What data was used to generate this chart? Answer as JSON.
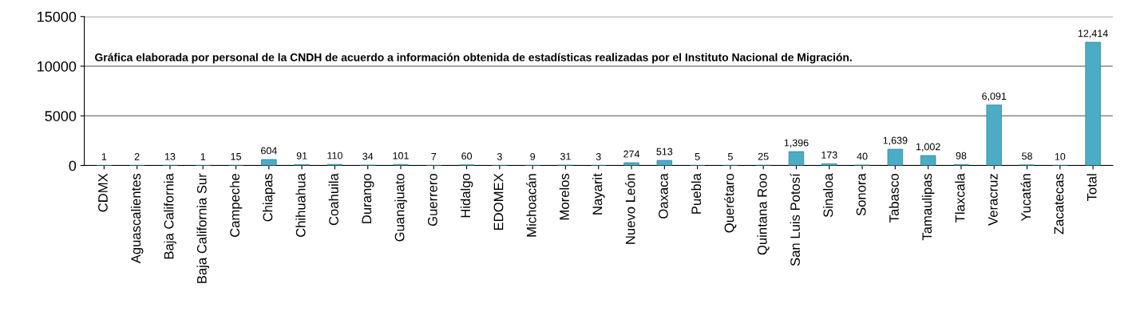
{
  "chart_data": {
    "type": "bar",
    "categories": [
      "CDMX",
      "Aguascalientes",
      "Baja California",
      "Baja California Sur",
      "Campeche",
      "Chiapas",
      "Chihuahua",
      "Coahuila",
      "Durango",
      "Guanajuato",
      "Guerrero",
      "Hidalgo",
      "EDOMEX",
      "Michoacán",
      "Morelos",
      "Nayarit",
      "Nuevo León",
      "Oaxaca",
      "Puebla",
      "Querétaro",
      "Quintana Roo",
      "San Luis Potosí",
      "Sinaloa",
      "Sonora",
      "Tabasco",
      "Tamaulipas",
      "Tlaxcala",
      "Veracruz",
      "Yucatán",
      "Zacatecas",
      "Total"
    ],
    "values": [
      1,
      2,
      13,
      1,
      15,
      604,
      91,
      110,
      34,
      101,
      7,
      60,
      3,
      9,
      31,
      3,
      274,
      513,
      5,
      5,
      25,
      1396,
      173,
      40,
      1639,
      1002,
      98,
      6091,
      58,
      10,
      12414
    ],
    "value_labels": [
      "1",
      "2",
      "13",
      "1",
      "15",
      "604",
      "91",
      "110",
      "34",
      "101",
      "7",
      "60",
      "3",
      "9",
      "31",
      "3",
      "274",
      "513",
      "5",
      "5",
      "25",
      "1,396",
      "173",
      "40",
      "1,639",
      "1,002",
      "98",
      "6,091",
      "58",
      "10",
      "12,414"
    ],
    "color": "#4bacc6",
    "ylim": [
      0,
      15000
    ],
    "yticks": [
      0,
      5000,
      10000,
      15000
    ],
    "grid": "y",
    "annotations": [
      "Gráfica elaborada por personal de la CNDH de acuerdo a información obtenida de estadísticas realizadas por el Instituto Nacional de Migración."
    ]
  }
}
